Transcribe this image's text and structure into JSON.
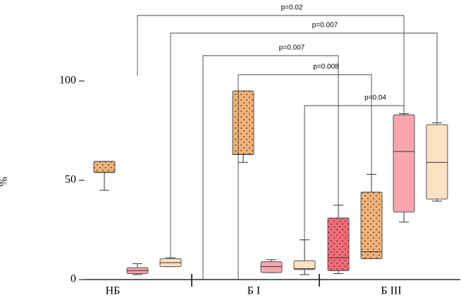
{
  "chart_data": {
    "type": "box",
    "y_label": "%",
    "categories": [
      "НБ",
      "Б I",
      "Б III"
    ],
    "ylim": [
      0,
      100
    ],
    "yticks": [
      0,
      50,
      100
    ],
    "boxes": [
      {
        "color": "#f2b277",
        "dotted": true,
        "min": 45,
        "q1": 54,
        "median": 54,
        "q3": 59.5,
        "max": 59.5
      },
      {
        "color": "#f8a5ad",
        "dotted": false,
        "min": 2.5,
        "q1": 3,
        "median": 4.5,
        "q3": 6,
        "max": 8
      },
      {
        "color": "#fde1c2",
        "dotted": false,
        "min": 6.5,
        "q1": 6.5,
        "median": 8.5,
        "q3": 10.5,
        "max": 11
      },
      {
        "color": "#f2b277",
        "dotted": true,
        "min": 59,
        "q1": 63,
        "median": 63,
        "q3": 95,
        "max": 95
      },
      {
        "color": "#f8a5ad",
        "dotted": false,
        "min": 3.5,
        "q1": 3.5,
        "median": 6.5,
        "q3": 9,
        "max": 10
      },
      {
        "color": "#fde1c2",
        "dotted": false,
        "min": 2.5,
        "q1": 5,
        "median": 5.5,
        "q3": 9.5,
        "max": 20
      },
      {
        "color": "#f26b78",
        "dotted": true,
        "min": 3,
        "q1": 4.5,
        "median": 11,
        "q3": 31,
        "max": 37.5
      },
      {
        "color": "#f2b277",
        "dotted": true,
        "min": 10.5,
        "q1": 10.5,
        "median": 14,
        "q3": 44,
        "max": 53
      },
      {
        "color": "#f8a5ad",
        "dotted": false,
        "min": 29,
        "q1": 34,
        "median": 64.5,
        "q3": 83,
        "max": 83.5
      },
      {
        "color": "#fde1c2",
        "dotted": false,
        "min": 39.5,
        "q1": 40.5,
        "median": 59,
        "q3": 78,
        "max": 79
      }
    ],
    "annotations": [
      "p=0.02",
      "p=0.007",
      "p=0.007",
      "p=0.008",
      "p=0.04"
    ]
  }
}
